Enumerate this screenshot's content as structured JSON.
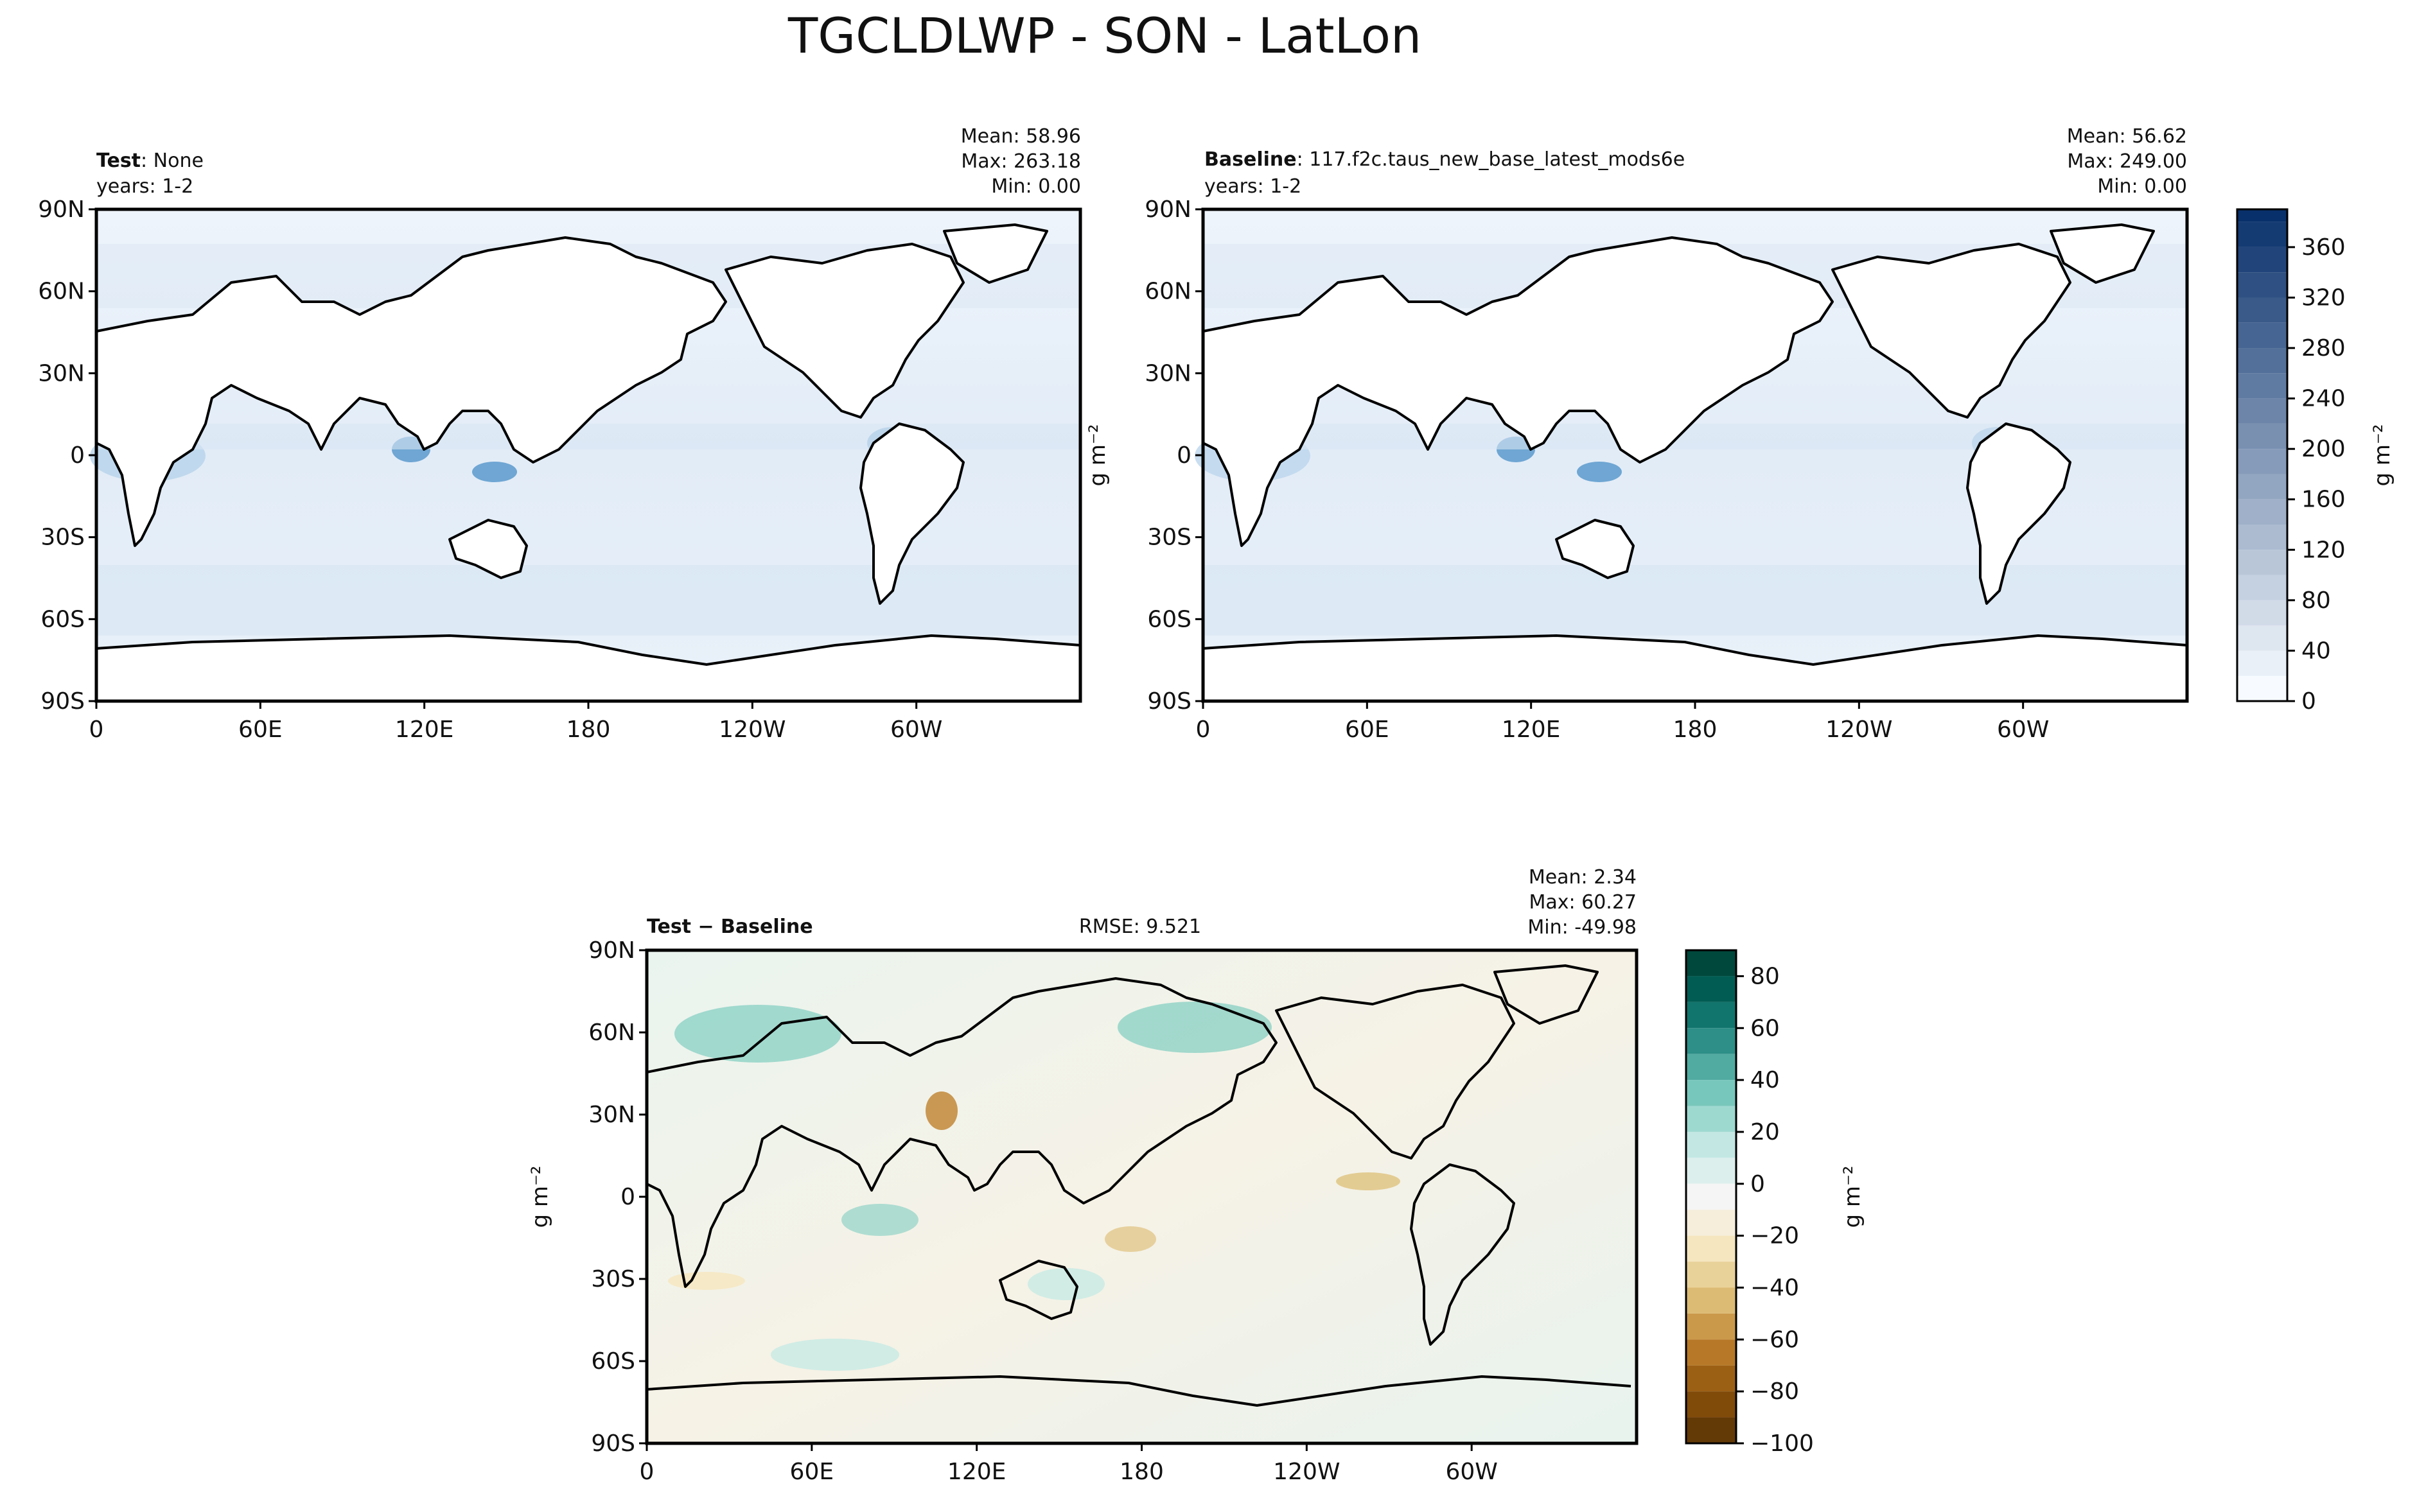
{
  "figure": {
    "title": "TGCLDLWP - SON - LatLon"
  },
  "chart_data": [
    {
      "type": "heatmap",
      "id": "test",
      "label_bold": "Test",
      "label_rest": ": None",
      "years": "years: 1-2",
      "stats": [
        "Mean: 58.96",
        "Max: 263.18",
        "Min:  0.00"
      ],
      "xticks": [
        "0",
        "60E",
        "120E",
        "180",
        "120W",
        "60W"
      ],
      "yticks": [
        "90N",
        "60N",
        "30N",
        "0",
        "30S",
        "60S",
        "90S"
      ],
      "units": "g m⁻²"
    },
    {
      "type": "heatmap",
      "id": "baseline",
      "label_bold": "Baseline",
      "label_rest": ": 117.f2c.taus_new_base_latest_mods6e",
      "years": "years: 1-2",
      "stats": [
        "Mean: 56.62",
        "Max: 249.00",
        "Min:  0.00"
      ],
      "xticks": [
        "0",
        "60E",
        "120E",
        "180",
        "120W",
        "60W"
      ],
      "yticks": [
        "90N",
        "60N",
        "30N",
        "0",
        "30S",
        "60S",
        "90S"
      ],
      "units": "g m⁻²",
      "colorbar": {
        "ticks": [
          "0",
          "40",
          "80",
          "120",
          "160",
          "200",
          "240",
          "280",
          "320",
          "360"
        ],
        "levels": [
          0,
          20,
          40,
          60,
          80,
          100,
          120,
          140,
          160,
          180,
          200,
          220,
          240,
          260,
          280,
          300,
          320,
          340,
          360,
          380,
          390
        ],
        "colors": [
          "#f7fbff",
          "#08306b"
        ],
        "label": "g m⁻²"
      }
    },
    {
      "type": "heatmap",
      "id": "diff",
      "label_bold": "Test − Baseline",
      "rmse": "RMSE: 9.521",
      "stats": [
        "Mean:  2.34",
        "Max: 60.27",
        "Min: -49.98"
      ],
      "xticks": [
        "0",
        "60E",
        "120E",
        "180",
        "120W",
        "60W"
      ],
      "yticks": [
        "90N",
        "60N",
        "30N",
        "0",
        "30S",
        "60S",
        "90S"
      ],
      "units": "g m⁻²",
      "colorbar": {
        "ticks": [
          "80",
          "60",
          "40",
          "20",
          "0",
          "−20",
          "−40",
          "−60",
          "−80",
          "−100"
        ],
        "colors": [
          "#003c30",
          "#01665e",
          "#35978f",
          "#80cdc1",
          "#c7eae5",
          "#f5f5f5",
          "#f6e8c3",
          "#dfc27d",
          "#bf812d",
          "#8c510a",
          "#543005"
        ],
        "label": "g m⁻²"
      }
    }
  ]
}
